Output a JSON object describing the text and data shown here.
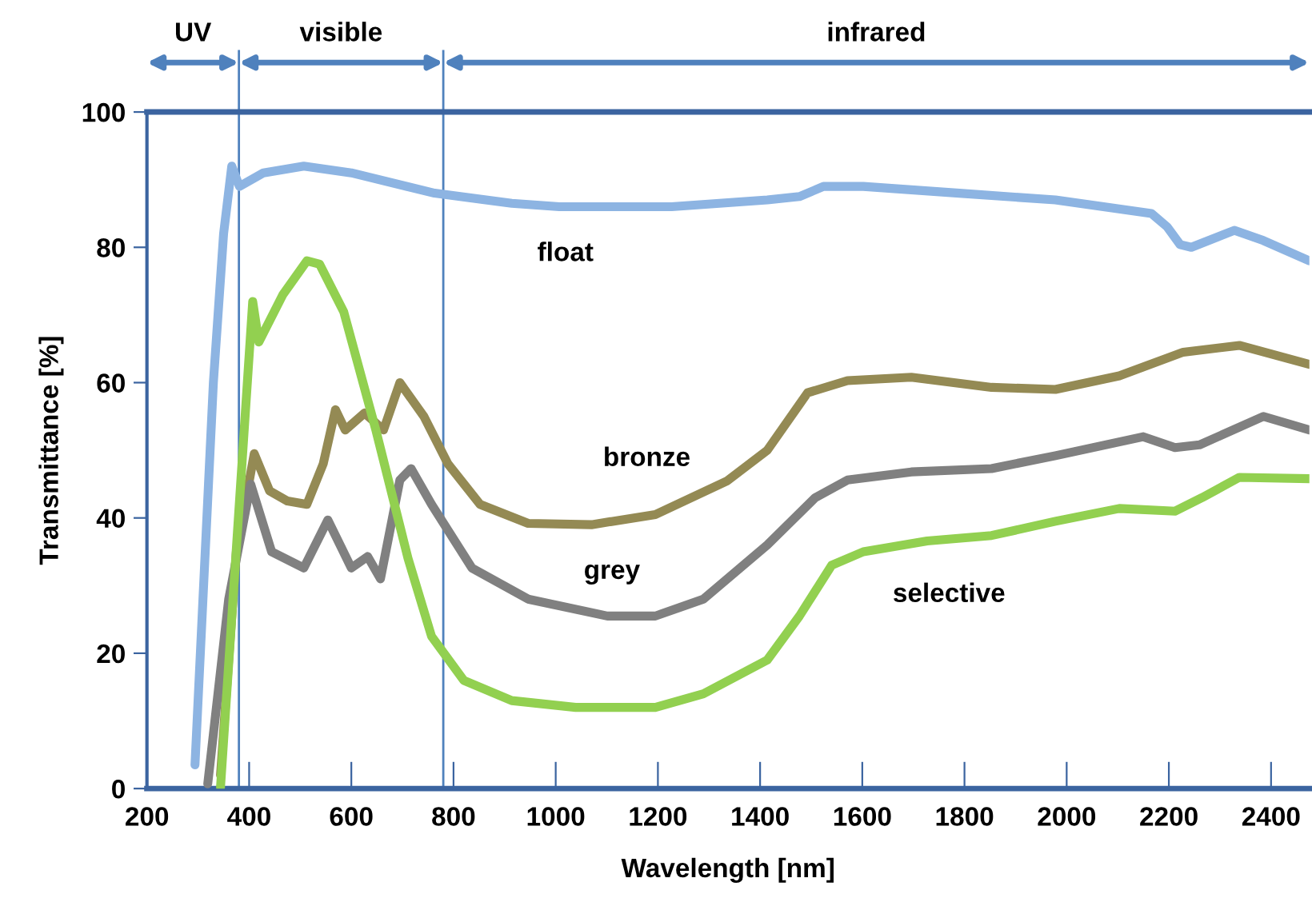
{
  "chart_data": {
    "type": "line",
    "xlabel": "Wavelength [nm]",
    "ylabel": "Transmittance [%]",
    "xlim": [
      200,
      2475
    ],
    "ylim": [
      0,
      100
    ],
    "xticks": [
      200,
      400,
      600,
      800,
      1000,
      1200,
      1400,
      1600,
      1800,
      2000,
      2200,
      2400
    ],
    "yticks": [
      0,
      20,
      40,
      60,
      80,
      100
    ],
    "grid": false,
    "legend": false,
    "marker": "none",
    "line_style": "solid",
    "ref_lines": [
      {
        "axis": "x",
        "value": 380,
        "color": "#4f81bd"
      },
      {
        "axis": "x",
        "value": 780,
        "color": "#4f81bd"
      }
    ],
    "annotations": [
      "UV",
      "visible",
      "infrared"
    ],
    "series": [
      {
        "name": "float",
        "color": "#8db4e2",
        "x": [
          294,
          330,
          350,
          366,
          381,
          428,
          507,
          600,
          763,
          914,
          1007,
          1227,
          1414,
          1477,
          1524,
          1602,
          1790,
          1978,
          2166,
          2197,
          2222,
          2244,
          2328,
          2385,
          2475
        ],
        "values": [
          3.5,
          60,
          82,
          92,
          89,
          91,
          92,
          91,
          88,
          86.5,
          86,
          86,
          87,
          87.5,
          89,
          89,
          88,
          87,
          85,
          83,
          80.4,
          80,
          82.5,
          81,
          78
        ]
      },
      {
        "name": "bronze",
        "color": "#948a54",
        "x": [
          344,
          375,
          410,
          440,
          475,
          513,
          545,
          569,
          588,
          626,
          663,
          695,
          742,
          789,
          852,
          946,
          1070,
          1195,
          1336,
          1414,
          1493,
          1571,
          1696,
          1853,
          1978,
          2103,
          2228,
          2338,
          2475
        ],
        "values": [
          2,
          35,
          49.5,
          44,
          42.5,
          42,
          48,
          56,
          53,
          55.5,
          53,
          60,
          55,
          48,
          42,
          39.2,
          39,
          40.5,
          45.5,
          50,
          58.5,
          60.3,
          60.8,
          59.3,
          59,
          61,
          64.5,
          65.5,
          62.7
        ]
      },
      {
        "name": "grey",
        "color": "#808080",
        "x": [
          319,
          360,
          403,
          444,
          507,
          554,
          600,
          632,
          657,
          695,
          717,
          757,
          836,
          946,
          1101,
          1195,
          1289,
          1414,
          1508,
          1571,
          1696,
          1853,
          1978,
          2150,
          2212,
          2260,
          2385,
          2475
        ],
        "values": [
          0.7,
          28,
          45,
          35,
          32.6,
          39.7,
          32.6,
          34.3,
          31,
          45.6,
          47.3,
          42,
          32.6,
          28,
          25.5,
          25.5,
          28,
          36,
          43,
          45.6,
          46.8,
          47.3,
          49.2,
          52,
          50.4,
          50.8,
          55,
          53
        ]
      },
      {
        "name": "selective",
        "color": "#92d050",
        "x": [
          344,
          375,
          407,
          419,
          466,
          513,
          538,
          585,
          648,
          711,
          757,
          820,
          914,
          1039,
          1195,
          1289,
          1414,
          1477,
          1540,
          1602,
          1727,
          1853,
          1978,
          2103,
          2212,
          2265,
          2338,
          2475
        ],
        "values": [
          0.2,
          35.5,
          72,
          66,
          73,
          78,
          77.5,
          70.5,
          53,
          34,
          22.5,
          16,
          13,
          12,
          12,
          14,
          19,
          25.5,
          33,
          35,
          36.6,
          37.4,
          39.5,
          41.4,
          41,
          43,
          46,
          45.8
        ]
      }
    ]
  }
}
